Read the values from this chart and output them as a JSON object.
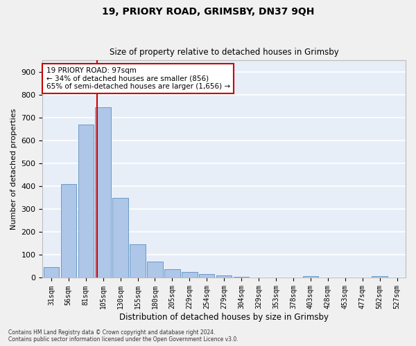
{
  "title1": "19, PRIORY ROAD, GRIMSBY, DN37 9QH",
  "title2": "Size of property relative to detached houses in Grimsby",
  "xlabel": "Distribution of detached houses by size in Grimsby",
  "ylabel": "Number of detached properties",
  "categories": [
    "31sqm",
    "56sqm",
    "81sqm",
    "105sqm",
    "130sqm",
    "155sqm",
    "180sqm",
    "205sqm",
    "229sqm",
    "254sqm",
    "279sqm",
    "304sqm",
    "329sqm",
    "353sqm",
    "378sqm",
    "403sqm",
    "428sqm",
    "453sqm",
    "477sqm",
    "502sqm",
    "527sqm"
  ],
  "values": [
    48,
    410,
    670,
    745,
    350,
    148,
    72,
    37,
    27,
    18,
    10,
    5,
    2,
    0,
    0,
    8,
    0,
    0,
    0,
    8,
    0
  ],
  "bar_color": "#aec6e8",
  "bar_edge_color": "#5a8fc0",
  "background_color": "#e8eef8",
  "grid_color": "#ffffff",
  "marker_label": "19 PRIORY ROAD: 97sqm",
  "marker_line_color": "#cc0000",
  "annotation_line1": "← 34% of detached houses are smaller (856)",
  "annotation_line2": "65% of semi-detached houses are larger (1,656) →",
  "annotation_box_edge": "#cc0000",
  "footnote1": "Contains HM Land Registry data © Crown copyright and database right 2024.",
  "footnote2": "Contains public sector information licensed under the Open Government Licence v3.0.",
  "ylim": [
    0,
    950
  ],
  "yticks": [
    0,
    100,
    200,
    300,
    400,
    500,
    600,
    700,
    800,
    900
  ],
  "fig_bg": "#f0f0f0"
}
